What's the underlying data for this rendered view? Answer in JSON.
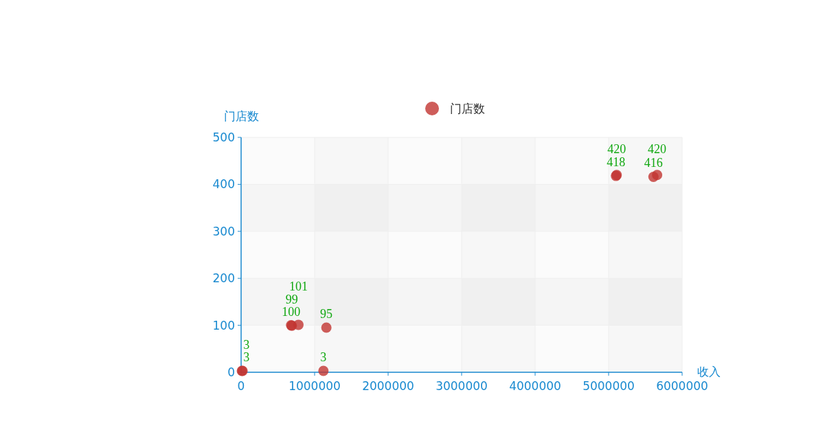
{
  "chart_data": {
    "type": "scatter",
    "xlabel": "收入",
    "ylabel": "门店数",
    "xlim": [
      0,
      6000000
    ],
    "ylim": [
      0,
      500
    ],
    "xticks": [
      0,
      1000000,
      2000000,
      3000000,
      4000000,
      5000000,
      6000000
    ],
    "yticks": [
      0,
      100,
      200,
      300,
      400,
      500
    ],
    "grid": true,
    "legend": "top",
    "marker": "circle",
    "data_labels": true,
    "series": [
      {
        "name": "门店数",
        "color": "#c23531",
        "x": [
          10000,
          20000,
          1120000,
          1160000,
          680000,
          690000,
          780000,
          5100000,
          5110000,
          5610000,
          5660000
        ],
        "values": [
          3,
          3,
          3,
          95,
          100,
          99,
          101,
          418,
          420,
          416,
          420
        ]
      }
    ]
  }
}
